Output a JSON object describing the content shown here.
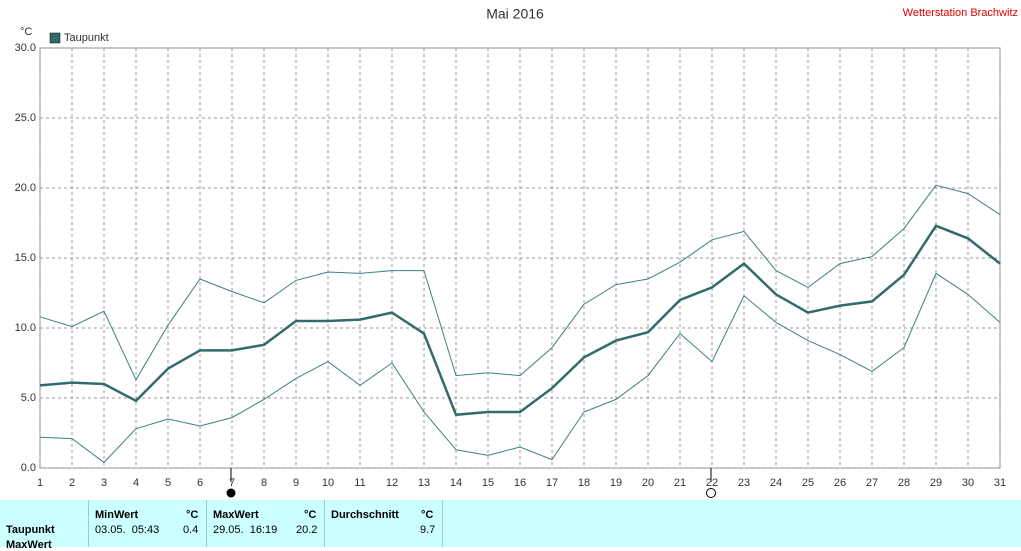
{
  "chart_data": {
    "type": "line",
    "title": "Mai 2016",
    "station": "Wetterstation Brachwitz",
    "y_unit": "°C",
    "x": [
      1,
      2,
      3,
      4,
      5,
      6,
      7,
      8,
      9,
      10,
      11,
      12,
      13,
      14,
      15,
      16,
      17,
      18,
      19,
      20,
      21,
      22,
      23,
      24,
      25,
      26,
      27,
      28,
      29,
      30,
      31
    ],
    "xlim": [
      1,
      31
    ],
    "xticks": [
      1,
      2,
      3,
      4,
      5,
      6,
      7,
      8,
      9,
      10,
      11,
      12,
      13,
      14,
      15,
      16,
      17,
      18,
      19,
      20,
      21,
      22,
      23,
      24,
      25,
      26,
      27,
      28,
      29,
      30,
      31
    ],
    "ylim": [
      0,
      30
    ],
    "yticks": [
      {
        "value": 0,
        "label": "0.0"
      },
      {
        "value": 5,
        "label": "5.0"
      },
      {
        "value": 10,
        "label": "10.0"
      },
      {
        "value": 15,
        "label": "15.0"
      },
      {
        "value": 20,
        "label": "20.0"
      },
      {
        "value": 25,
        "label": "25.0"
      },
      {
        "value": 30,
        "label": "30.0"
      }
    ],
    "grid": true,
    "series": [
      {
        "name": "Taupunkt",
        "color": "#336b6b",
        "values": [
          5.9,
          6.1,
          6.0,
          4.8,
          7.1,
          8.4,
          8.4,
          8.8,
          10.5,
          10.5,
          10.6,
          11.1,
          9.6,
          3.8,
          4.0,
          4.0,
          5.7,
          7.9,
          9.1,
          9.7,
          12.0,
          12.9,
          14.6,
          12.4,
          11.1,
          11.6,
          11.9,
          13.8,
          17.3,
          16.4,
          14.6
        ]
      }
    ],
    "band": {
      "color": "#3f7f7f",
      "max": [
        10.8,
        10.1,
        11.2,
        6.3,
        10.2,
        13.5,
        12.6,
        11.8,
        13.4,
        14.0,
        13.9,
        14.1,
        14.1,
        6.6,
        6.8,
        6.6,
        8.6,
        11.7,
        13.1,
        13.5,
        14.7,
        16.3,
        16.9,
        14.1,
        12.9,
        14.6,
        15.1,
        17.1,
        20.2,
        19.6,
        18.1
      ],
      "min": [
        2.2,
        2.1,
        0.4,
        2.8,
        3.5,
        3.0,
        3.6,
        4.9,
        6.4,
        7.6,
        5.9,
        7.5,
        4.0,
        1.3,
        0.9,
        1.5,
        0.6,
        4.0,
        4.9,
        6.6,
        9.6,
        7.6,
        12.3,
        10.4,
        9.1,
        8.1,
        6.9,
        8.6,
        13.9,
        12.4,
        10.4
      ]
    }
  },
  "table": {
    "header": [
      "MinWert",
      "°C",
      "MaxWert",
      "°C",
      "Durchschnitt",
      "°C"
    ],
    "rows": [
      [
        "Taupunkt",
        "03.05.  05:43",
        "0.4",
        "29.05.  16:19",
        "20.2",
        "9.7"
      ],
      [
        "MaxWert"
      ]
    ]
  }
}
